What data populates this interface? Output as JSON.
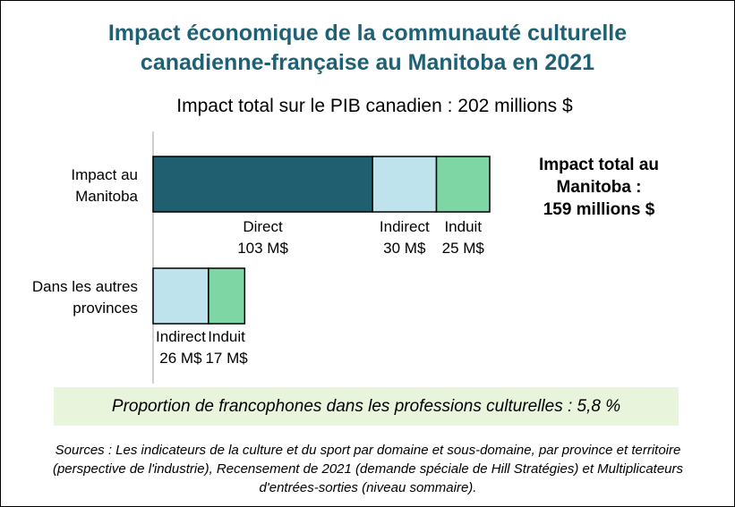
{
  "colors": {
    "title": "#1f6174",
    "direct": "#1f5f6f",
    "indirect": "#bfe3ec",
    "induit": "#7fd6a5",
    "proportion_box": "#e9f4dd",
    "axis": "#bfbfbf"
  },
  "title_lines": [
    "Impact économique de la communauté culturelle",
    "canadienne-française au Manitoba en 2021"
  ],
  "subtitle": "Impact total sur le PIB canadien : 202 millions $",
  "manitoba_total_lines": [
    "Impact total au",
    "Manitoba :",
    "159 millions $"
  ],
  "proportion_text": "Proportion de francophones dans les professions culturelles : 5,8 %",
  "sources": "Sources : Les indicateurs de la culture et du sport par domaine et sous-domaine, par province et territoire (perspective de l'industrie), Recensement de 2021 (demande spéciale de Hill Stratégies) et Multiplicateurs d'entrées-sorties (niveau sommaire).",
  "chart_data": {
    "type": "bar",
    "orientation": "horizontal",
    "stacked": true,
    "unit": "M$",
    "categories": [
      [
        "Impact au",
        "Manitoba"
      ],
      [
        "Dans les autres",
        "provinces"
      ]
    ],
    "series": [
      {
        "name": "Direct",
        "color": "#1f5f6f",
        "values": [
          103,
          0
        ],
        "labels": [
          [
            "Direct",
            "103 M$"
          ],
          null
        ]
      },
      {
        "name": "Indirect",
        "color": "#bfe3ec",
        "values": [
          30,
          26
        ],
        "labels": [
          [
            "Indirect",
            "30 M$"
          ],
          [
            "Indirect",
            "26 M$"
          ]
        ]
      },
      {
        "name": "Induit",
        "color": "#7fd6a5",
        "values": [
          25,
          17
        ],
        "labels": [
          [
            "Induit",
            "25 M$"
          ],
          [
            "Induit",
            "17 M$"
          ]
        ]
      }
    ],
    "xlim": [
      0,
      158
    ],
    "grid": false,
    "legend": "none"
  }
}
